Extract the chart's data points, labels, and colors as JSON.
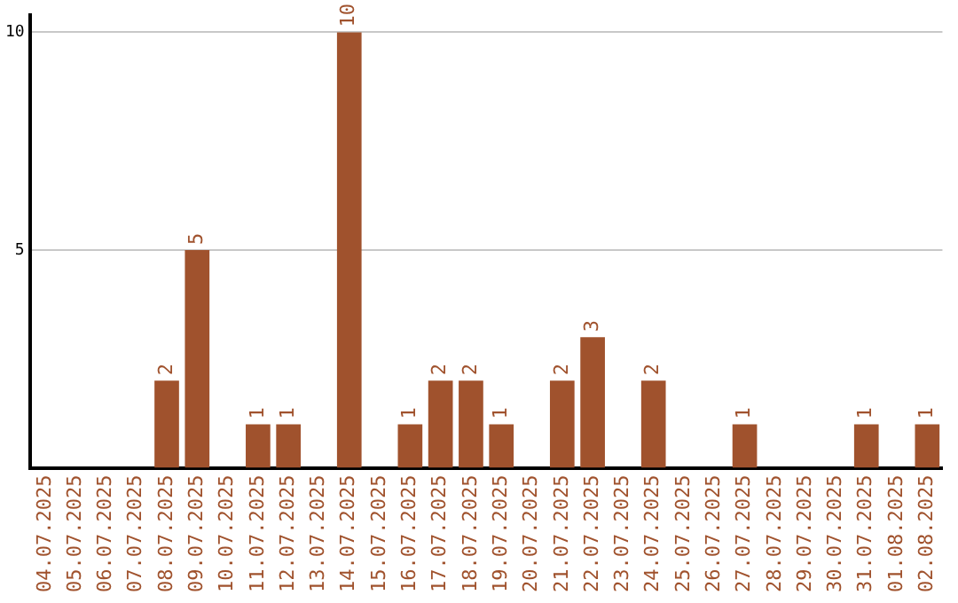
{
  "chart_data": {
    "type": "bar",
    "categories": [
      "04.07.2025",
      "05.07.2025",
      "06.07.2025",
      "07.07.2025",
      "08.07.2025",
      "09.07.2025",
      "10.07.2025",
      "11.07.2025",
      "12.07.2025",
      "13.07.2025",
      "14.07.2025",
      "15.07.2025",
      "16.07.2025",
      "17.07.2025",
      "18.07.2025",
      "19.07.2025",
      "20.07.2025",
      "21.07.2025",
      "22.07.2025",
      "23.07.2025",
      "24.07.2025",
      "25.07.2025",
      "26.07.2025",
      "27.07.2025",
      "28.07.2025",
      "29.07.2025",
      "30.07.2025",
      "31.07.2025",
      "01.08.2025",
      "02.08.2025"
    ],
    "values": [
      0,
      0,
      0,
      0,
      2,
      5,
      0,
      1,
      1,
      0,
      10,
      0,
      1,
      2,
      2,
      1,
      0,
      2,
      3,
      0,
      2,
      0,
      0,
      1,
      0,
      0,
      0,
      1,
      0,
      1
    ],
    "value_labels": [
      null,
      null,
      null,
      null,
      "2",
      "5",
      null,
      "1",
      "1",
      null,
      "10",
      null,
      "1",
      "2",
      "2",
      "1",
      null,
      "2",
      "3",
      null,
      "2",
      null,
      null,
      "1",
      null,
      null,
      null,
      "1",
      null,
      "1"
    ],
    "color": "#a0522d",
    "ylim": [
      0,
      10.4
    ],
    "yticks": [
      5,
      10
    ],
    "grid": "y",
    "legend": false
  }
}
